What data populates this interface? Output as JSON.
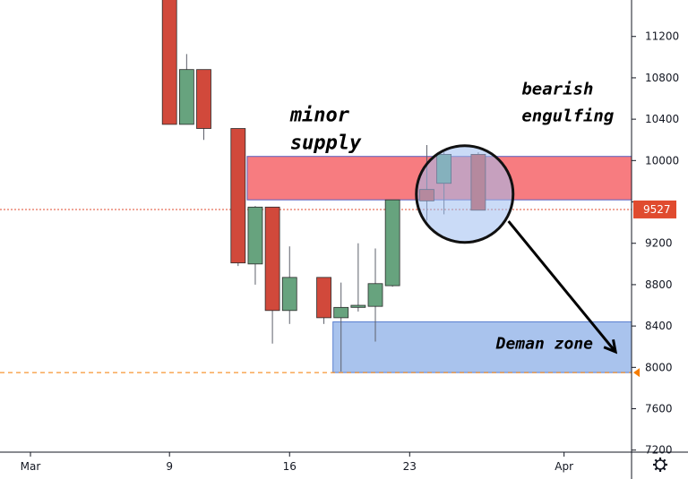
{
  "chart_data": {
    "type": "candlestick",
    "ylim": [
      7150,
      11500
    ],
    "y_ticks": [
      7200,
      7600,
      8000,
      8400,
      8800,
      9200,
      9600,
      10000,
      10400,
      10800,
      11200
    ],
    "y_tick_labels": [
      "7200",
      "7600",
      "8000",
      "8400",
      "8800",
      "9200",
      "",
      "10000",
      "10400",
      "10800",
      "11200"
    ],
    "x_ticks": [
      {
        "label": "Mar",
        "day": 0
      },
      {
        "label": "9",
        "day": 8
      },
      {
        "label": "16",
        "day": 15
      },
      {
        "label": "23",
        "day": 22
      },
      {
        "label": "Apr",
        "day": 31
      }
    ],
    "x_range": [
      -2,
      37
    ],
    "candles": [
      {
        "day": 8,
        "open": 11800,
        "high": 11900,
        "low": 10350,
        "close": 10350
      },
      {
        "day": 9,
        "open": 10350,
        "high": 11030,
        "low": 10350,
        "close": 10880
      },
      {
        "day": 10,
        "open": 10880,
        "high": 10880,
        "low": 10200,
        "close": 10310
      },
      {
        "day": 12,
        "open": 10310,
        "high": 10310,
        "low": 8980,
        "close": 9010
      },
      {
        "day": 13,
        "open": 9000,
        "high": 9560,
        "low": 8800,
        "close": 9550
      },
      {
        "day": 14,
        "open": 9550,
        "high": 9550,
        "low": 8230,
        "close": 8550
      },
      {
        "day": 15,
        "open": 8550,
        "high": 9170,
        "low": 8420,
        "close": 8870
      },
      {
        "day": 17,
        "open": 8870,
        "high": 8870,
        "low": 8420,
        "close": 8480
      },
      {
        "day": 18,
        "open": 8480,
        "high": 8820,
        "low": 7960,
        "close": 8580
      },
      {
        "day": 19,
        "open": 8580,
        "high": 9200,
        "low": 8540,
        "close": 8600
      },
      {
        "day": 20,
        "open": 8590,
        "high": 9150,
        "low": 8250,
        "close": 8810
      },
      {
        "day": 21,
        "open": 8790,
        "high": 9620,
        "low": 8780,
        "close": 9620
      },
      {
        "day": 23,
        "open": 9720,
        "high": 10150,
        "low": 9420,
        "close": 9610
      },
      {
        "day": 24,
        "open": 9780,
        "high": 10080,
        "low": 9480,
        "close": 10060
      },
      {
        "day": 26,
        "open": 10060,
        "high": 10080,
        "low": 9520,
        "close": 9520
      }
    ],
    "zones": [
      {
        "name": "minor supply",
        "from_day": 13,
        "to_day": 37,
        "low": 9620,
        "high": 10040,
        "color": "#f77c80"
      },
      {
        "name": "Deman zone",
        "from_day": 18,
        "to_day": 37,
        "low": 7950,
        "high": 8440,
        "color": "#a9c3ed"
      }
    ],
    "current_price": {
      "value": 9527,
      "label": "9527",
      "color": "#e04b2f"
    },
    "support_line": {
      "value": 7950,
      "color": "#f57c00"
    },
    "circle": {
      "day": 25,
      "price": 9780
    },
    "arrow": {
      "from_day": 27.5,
      "from_price": 9500,
      "to_day": 34,
      "to_price": 8150
    },
    "annotations": [
      {
        "text": "minor",
        "day": 15.5,
        "price": 10380
      },
      {
        "text": "supply",
        "day": 15.5,
        "price": 10110
      },
      {
        "text": "bearish",
        "day": 29,
        "price": 10640
      },
      {
        "text": "engulfing",
        "day": 29,
        "price": 10380
      },
      {
        "text": "Deman zone",
        "day": 27.5,
        "price": 8180
      }
    ],
    "colors": {
      "up": "#67a37e",
      "down": "#d1493b",
      "grid": "#e8e8ea",
      "axis": "#131722"
    },
    "settings_icon": "gear-icon"
  }
}
